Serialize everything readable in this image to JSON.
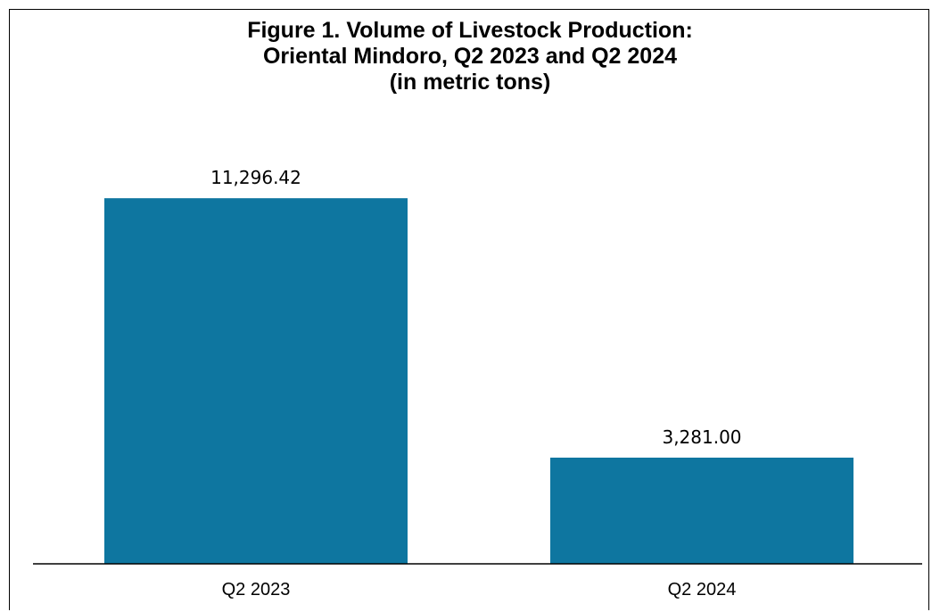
{
  "chart_data": {
    "type": "bar",
    "title_lines": [
      "Figure 1. Volume of Livestock Production:",
      "Oriental Mindoro, Q2 2023 and Q2 2024",
      "(in metric tons)"
    ],
    "categories": [
      "Q2 2023",
      "Q2 2024"
    ],
    "values": [
      11296.42,
      3281.0
    ],
    "data_labels": [
      "11,296.42",
      "3,281.00"
    ],
    "ylim": [
      0,
      12900
    ],
    "xlabel": "",
    "ylabel": "",
    "grid": false,
    "legend": "none",
    "bar_color": "#0E76A0"
  }
}
